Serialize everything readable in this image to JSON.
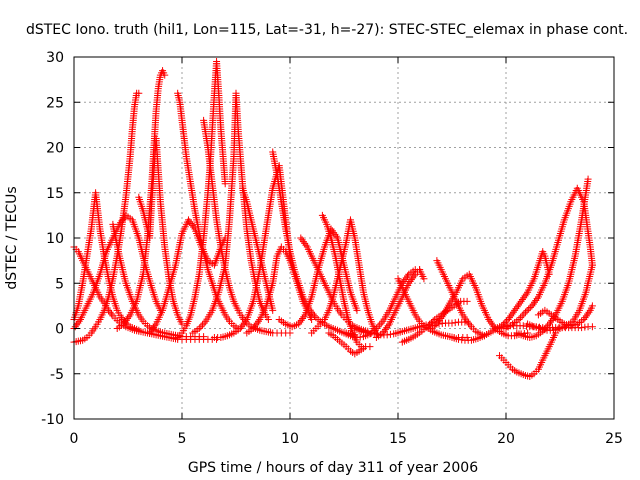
{
  "chart_data": {
    "type": "scatter",
    "title": "dSTEC Iono. truth (hil1, Lon=115, Lat=-31, h=-27): STEC-STEC_elemax in phase cont.",
    "xlabel": "GPS time / hours of day 311 of year 2006",
    "ylabel": "dSTEC  / TECUs",
    "xlim": [
      0,
      25
    ],
    "ylim": [
      -10,
      30
    ],
    "x_ticks": [
      0,
      5,
      10,
      15,
      20,
      25
    ],
    "y_ticks": [
      -10,
      -5,
      0,
      5,
      10,
      15,
      20,
      25,
      30
    ],
    "grid": true,
    "marker": "+",
    "color": "#ff0000",
    "series": [
      {
        "x": [
          0.0,
          0.2,
          0.4,
          0.6,
          0.8,
          1.0,
          1.2,
          1.4,
          1.6,
          1.8,
          2.0,
          2.2,
          2.4,
          2.6,
          2.8,
          3.0,
          3.2,
          3.4,
          3.6,
          3.8,
          4.0,
          4.2,
          4.4,
          4.6,
          4.8,
          5.0,
          5.2,
          5.4,
          5.6,
          5.8,
          6.0,
          6.2,
          6.4,
          6.6
        ],
        "y": [
          9.0,
          8.5,
          7.5,
          6.5,
          5.5,
          4.5,
          3.5,
          2.8,
          2.0,
          1.4,
          0.9,
          0.5,
          0.2,
          0.0,
          -0.2,
          -0.3,
          -0.4,
          -0.5,
          -0.6,
          -0.7,
          -0.8,
          -0.9,
          -1.0,
          -1.1,
          -1.2,
          -1.2,
          -1.2,
          -1.2,
          -1.2,
          -1.2,
          -1.2,
          -1.2,
          -1.2,
          -1.2
        ]
      },
      {
        "x": [
          0.0,
          0.2,
          0.4,
          0.6,
          0.8,
          0.9,
          1.0,
          1.1,
          1.2,
          1.4,
          1.6,
          1.8,
          2.0,
          2.2,
          2.4,
          2.6,
          2.8,
          3.0
        ],
        "y": [
          1.0,
          2.5,
          5.0,
          8.0,
          11.0,
          13.0,
          15.0,
          13.0,
          11.0,
          8.0,
          5.5,
          3.5,
          2.0,
          1.2,
          0.6,
          0.2,
          0.0,
          -0.2
        ]
      },
      {
        "x": [
          0.0,
          0.2,
          0.4,
          0.6,
          0.8,
          1.0,
          1.2,
          1.4,
          1.6,
          1.8,
          2.0,
          2.2,
          2.4,
          2.6,
          2.7,
          2.8,
          2.9,
          3.0
        ],
        "y": [
          -1.5,
          -1.4,
          -1.3,
          -1.0,
          -0.5,
          0.2,
          1.0,
          2.0,
          3.5,
          5.5,
          8.0,
          11.0,
          14.5,
          19.0,
          22.0,
          24.5,
          26.0,
          26.0
        ]
      },
      {
        "x": [
          0.0,
          0.3,
          0.6,
          0.9,
          1.2,
          1.5,
          1.8,
          2.1,
          2.4,
          2.7,
          3.0,
          3.3,
          3.6,
          3.8,
          3.9,
          4.0
        ],
        "y": [
          0.0,
          1.0,
          2.5,
          4.0,
          6.0,
          8.5,
          10.0,
          11.5,
          12.5,
          12.0,
          10.0,
          7.0,
          4.5,
          3.0,
          2.5,
          2.0
        ]
      },
      {
        "x": [
          1.8,
          2.1,
          2.4,
          2.7,
          3.0,
          3.2,
          3.4,
          3.6,
          3.8,
          4.0,
          4.2,
          4.4,
          4.6,
          4.8,
          5.0,
          5.2,
          5.4,
          5.6,
          5.8,
          6.0
        ],
        "y": [
          11.5,
          8.0,
          5.0,
          3.0,
          1.5,
          0.8,
          0.3,
          0.0,
          -0.2,
          -0.4,
          -0.5,
          -0.6,
          -0.7,
          -0.8,
          -0.9,
          -0.9,
          -0.9,
          -0.9,
          -0.9,
          -0.9
        ]
      },
      {
        "x": [
          2.0,
          2.3,
          2.6,
          2.9,
          3.2,
          3.4,
          3.6,
          3.7,
          3.8,
          3.9,
          4.0,
          4.1,
          4.2
        ],
        "y": [
          0.0,
          0.5,
          1.5,
          3.0,
          6.0,
          10.0,
          16.0,
          20.0,
          24.0,
          26.5,
          28.0,
          28.5,
          28.0
        ]
      },
      {
        "x": [
          3.0,
          3.2,
          3.4,
          3.5,
          3.6,
          3.8,
          4.0,
          4.2,
          4.4,
          4.6,
          4.8,
          5.0
        ],
        "y": [
          14.5,
          13.0,
          11.0,
          10.0,
          14.0,
          21.0,
          14.0,
          9.0,
          5.5,
          3.0,
          1.5,
          0.5
        ]
      },
      {
        "x": [
          3.5,
          3.8,
          4.1,
          4.4,
          4.7,
          5.0,
          5.3,
          5.6,
          5.9,
          6.2,
          6.5,
          6.8,
          7.0
        ],
        "y": [
          -0.5,
          0.5,
          2.0,
          4.5,
          7.0,
          10.5,
          12.0,
          11.0,
          9.0,
          7.5,
          7.0,
          9.0,
          10.0
        ]
      },
      {
        "x": [
          4.8,
          4.9,
          5.0,
          5.1,
          5.2,
          5.4,
          5.6,
          5.8,
          6.0,
          6.2,
          6.4,
          6.6,
          6.8,
          7.0,
          7.2,
          7.4,
          7.6
        ],
        "y": [
          26.0,
          25.0,
          23.0,
          21.0,
          19.0,
          16.0,
          13.0,
          10.5,
          8.5,
          6.5,
          5.0,
          3.5,
          2.5,
          1.5,
          0.8,
          0.3,
          0.0
        ]
      },
      {
        "x": [
          4.8,
          5.0,
          5.2,
          5.4,
          5.6,
          5.8,
          6.0,
          6.2,
          6.3,
          6.4,
          6.5,
          6.6,
          6.7,
          6.8,
          7.0
        ],
        "y": [
          -1.0,
          -0.5,
          0.3,
          1.5,
          3.5,
          6.0,
          10.0,
          15.0,
          18.0,
          22.0,
          26.0,
          29.5,
          26.0,
          22.0,
          16.0
        ]
      },
      {
        "x": [
          6.0,
          6.2,
          6.4,
          6.6,
          6.8,
          7.0,
          7.2,
          7.4,
          7.6,
          7.8,
          8.0,
          8.2,
          8.4,
          8.6,
          8.8,
          9.0,
          9.2,
          9.4,
          9.6,
          9.8,
          10.0
        ],
        "y": [
          23.0,
          20.0,
          16.0,
          12.0,
          9.0,
          6.5,
          4.5,
          3.0,
          2.0,
          1.2,
          0.6,
          0.2,
          0.0,
          -0.2,
          -0.3,
          -0.4,
          -0.5,
          -0.5,
          -0.5,
          -0.5,
          -0.5
        ]
      },
      {
        "x": [
          5.5,
          5.8,
          6.1,
          6.4,
          6.7,
          7.0,
          7.2,
          7.4,
          7.5,
          7.6,
          7.8,
          8.0,
          8.2,
          8.4,
          8.6,
          8.8,
          9.0
        ],
        "y": [
          -0.5,
          0.0,
          0.8,
          2.0,
          4.0,
          7.0,
          12.0,
          19.0,
          26.0,
          22.0,
          16.0,
          11.0,
          7.5,
          5.0,
          3.0,
          1.8,
          1.0
        ]
      },
      {
        "x": [
          6.5,
          6.8,
          7.1,
          7.4,
          7.7,
          8.0,
          8.3,
          8.6,
          8.9,
          9.2,
          9.5,
          9.8,
          10.0
        ],
        "y": [
          -1.0,
          -1.0,
          -0.8,
          -0.5,
          0.0,
          1.0,
          3.0,
          6.5,
          11.0,
          15.5,
          18.0,
          12.0,
          8.0
        ]
      },
      {
        "x": [
          8.0,
          8.3,
          8.6,
          8.9,
          9.2,
          9.4,
          9.6,
          9.8,
          10.0,
          10.2,
          10.4,
          10.6,
          10.8,
          11.0
        ],
        "y": [
          -0.5,
          0.0,
          1.0,
          2.5,
          5.0,
          8.0,
          9.0,
          8.5,
          7.5,
          6.0,
          4.5,
          3.0,
          2.0,
          1.0
        ]
      },
      {
        "x": [
          7.8,
          8.0,
          8.2,
          8.4,
          8.6,
          8.8,
          9.0,
          9.2
        ],
        "y": [
          15.5,
          14.0,
          12.0,
          10.0,
          8.0,
          6.0,
          4.0,
          2.0
        ]
      },
      {
        "x": [
          9.2,
          9.4,
          9.6,
          9.8,
          10.0,
          10.2,
          10.4,
          10.6,
          10.8,
          11.0,
          11.2,
          11.4,
          11.6,
          11.8,
          12.0,
          12.2,
          12.4,
          12.6,
          12.8,
          13.0
        ],
        "y": [
          19.5,
          17.0,
          14.0,
          11.0,
          8.5,
          6.5,
          5.0,
          3.5,
          2.5,
          1.8,
          1.2,
          0.8,
          0.5,
          0.2,
          0.0,
          -0.2,
          -0.4,
          -0.5,
          -0.6,
          -0.7
        ]
      },
      {
        "x": [
          9.5,
          9.8,
          10.1,
          10.4,
          10.7,
          11.0,
          11.3,
          11.6,
          11.9,
          12.2,
          12.5,
          12.8,
          13.1
        ],
        "y": [
          1.0,
          0.5,
          0.2,
          0.5,
          1.5,
          3.5,
          6.5,
          9.0,
          11.0,
          10.0,
          7.0,
          4.0,
          2.0
        ]
      },
      {
        "x": [
          10.5,
          10.8,
          11.0,
          11.2,
          11.4,
          11.6,
          11.8,
          12.0,
          12.2,
          12.4,
          12.6,
          12.8,
          13.0,
          13.2,
          13.4,
          13.6
        ],
        "y": [
          10.0,
          9.0,
          8.0,
          7.0,
          6.0,
          5.0,
          4.0,
          3.0,
          2.2,
          1.5,
          1.0,
          0.5,
          0.2,
          0.0,
          -0.2,
          -0.3
        ]
      },
      {
        "x": [
          11.0,
          11.2,
          11.4,
          11.6,
          11.8,
          12.0,
          12.2,
          12.4,
          12.6,
          12.8,
          13.0,
          13.2,
          13.4,
          13.6,
          13.8,
          14.0
        ],
        "y": [
          -0.5,
          0.0,
          0.5,
          1.0,
          2.0,
          3.5,
          5.5,
          7.5,
          9.5,
          12.0,
          10.0,
          7.0,
          4.0,
          2.0,
          0.5,
          -0.5
        ]
      },
      {
        "x": [
          11.5,
          11.7,
          11.9,
          12.1,
          12.3,
          12.5,
          12.7,
          12.9,
          13.1,
          13.3,
          13.5,
          13.7
        ],
        "y": [
          12.5,
          11.5,
          10.0,
          8.0,
          5.5,
          3.0,
          1.0,
          -0.5,
          -1.5,
          -2.0,
          -2.0,
          -2.0
        ]
      },
      {
        "x": [
          11.8,
          12.0,
          12.2,
          12.4,
          12.6,
          12.8,
          13.0,
          13.2,
          13.4
        ],
        "y": [
          -0.5,
          -0.8,
          -1.2,
          -1.6,
          -2.0,
          -2.5,
          -2.8,
          -2.5,
          -2.2
        ]
      },
      {
        "x": [
          13.0,
          13.3,
          13.6,
          13.9,
          14.2,
          14.5,
          14.8,
          15.1,
          15.4,
          15.7,
          16.0,
          16.3,
          16.6,
          16.9,
          17.2,
          17.5,
          17.8,
          18.1
        ],
        "y": [
          0.0,
          -0.3,
          -0.5,
          -0.6,
          -0.7,
          -0.7,
          -0.6,
          -0.4,
          -0.2,
          0.0,
          0.2,
          0.4,
          0.5,
          0.5,
          0.6,
          0.6,
          0.7,
          0.7
        ]
      },
      {
        "x": [
          12.5,
          12.8,
          13.1,
          13.4,
          13.7,
          14.0,
          14.3,
          14.6,
          14.9,
          15.2,
          15.5,
          15.8,
          16.0
        ],
        "y": [
          -0.5,
          -0.8,
          -1.0,
          -0.9,
          -0.6,
          0.0,
          0.8,
          2.0,
          3.5,
          5.0,
          6.0,
          6.5,
          6.5
        ]
      },
      {
        "x": [
          14.0,
          14.3,
          14.6,
          14.9,
          15.2,
          15.5,
          15.8,
          16.0,
          16.2
        ],
        "y": [
          -1.0,
          -0.5,
          0.5,
          2.0,
          3.5,
          5.0,
          6.0,
          6.5,
          5.5
        ]
      },
      {
        "x": [
          15.2,
          15.5,
          15.8,
          16.1,
          16.4,
          16.7,
          17.0,
          17.3,
          17.6,
          17.9,
          18.2
        ],
        "y": [
          -1.5,
          -1.2,
          -0.8,
          -0.3,
          0.3,
          1.0,
          1.5,
          2.0,
          2.5,
          3.0,
          3.0
        ]
      },
      {
        "x": [
          15.0,
          15.2,
          15.4,
          15.6,
          15.8,
          16.0,
          16.2,
          16.4,
          16.6,
          16.8,
          17.0,
          17.2,
          17.4,
          17.6,
          17.8,
          18.0,
          18.2
        ],
        "y": [
          5.5,
          4.5,
          3.5,
          2.5,
          1.5,
          0.8,
          0.3,
          0.0,
          -0.3,
          -0.5,
          -0.7,
          -0.8,
          -0.9,
          -1.0,
          -1.0,
          -1.0,
          -1.0
        ]
      },
      {
        "x": [
          16.5,
          16.8,
          17.1,
          17.4,
          17.7,
          18.0,
          18.3,
          18.6,
          18.9,
          19.2,
          19.5,
          19.8,
          20.1,
          20.4,
          20.7,
          21.0
        ],
        "y": [
          0.0,
          0.5,
          1.5,
          2.8,
          4.0,
          5.5,
          6.0,
          4.5,
          2.5,
          1.0,
          0.0,
          -0.5,
          -0.8,
          -0.8,
          -0.6,
          -0.5
        ]
      },
      {
        "x": [
          16.8,
          17.0,
          17.2,
          17.4,
          17.6,
          17.8,
          18.0,
          18.2,
          18.4,
          18.6,
          18.8,
          19.0
        ],
        "y": [
          7.5,
          6.5,
          5.5,
          4.5,
          3.5,
          2.5,
          1.5,
          0.8,
          0.2,
          -0.3,
          -0.6,
          -0.8
        ]
      },
      {
        "x": [
          17.5,
          17.8,
          18.1,
          18.4,
          18.7,
          19.0,
          19.3,
          19.6,
          19.9,
          20.2,
          20.5,
          20.8,
          21.1,
          21.4,
          21.7,
          22.0,
          22.3,
          22.6,
          22.9,
          23.2,
          23.5,
          23.8,
          24.0
        ],
        "y": [
          -1.0,
          -1.2,
          -1.3,
          -1.3,
          -1.1,
          -0.8,
          -0.4,
          0.0,
          0.2,
          0.3,
          0.3,
          0.3,
          0.2,
          0.2,
          0.1,
          0.1,
          0.1,
          0.1,
          0.1,
          0.1,
          0.1,
          0.2,
          0.2
        ]
      },
      {
        "x": [
          19.7,
          19.9,
          20.1,
          20.3,
          20.5,
          20.7,
          20.9,
          21.1,
          21.3,
          21.5,
          21.7,
          21.9,
          22.1,
          22.3
        ],
        "y": [
          -3.0,
          -3.5,
          -4.0,
          -4.5,
          -4.8,
          -5.0,
          -5.2,
          -5.3,
          -5.0,
          -4.5,
          -3.5,
          -2.5,
          -1.5,
          -0.5
        ]
      },
      {
        "x": [
          19.5,
          19.8,
          20.1,
          20.4,
          20.7,
          21.0,
          21.3,
          21.5,
          21.7,
          21.8,
          22.0
        ],
        "y": [
          0.0,
          0.3,
          1.0,
          2.0,
          3.0,
          4.0,
          5.5,
          7.0,
          8.5,
          8.0,
          6.0
        ]
      },
      {
        "x": [
          20.0,
          20.3,
          20.6,
          20.9,
          21.2,
          21.5,
          21.8,
          22.1,
          22.4,
          22.7,
          23.0,
          23.3,
          23.6,
          23.9,
          24.0
        ],
        "y": [
          0.0,
          0.5,
          1.0,
          1.8,
          2.5,
          3.5,
          5.0,
          7.0,
          9.5,
          12.0,
          14.0,
          15.5,
          14.0,
          9.0,
          7.0
        ]
      },
      {
        "x": [
          20.5,
          20.8,
          21.1,
          21.4,
          21.7,
          22.0,
          22.3,
          22.6,
          22.9,
          23.2,
          23.5,
          23.7,
          23.8
        ],
        "y": [
          -0.5,
          -0.8,
          -1.0,
          -0.8,
          -0.3,
          0.5,
          1.5,
          3.0,
          5.0,
          8.0,
          12.0,
          15.0,
          16.5
        ]
      },
      {
        "x": [
          21.0,
          21.3,
          21.6,
          21.9,
          22.2,
          22.5,
          22.8,
          23.1,
          23.4,
          23.7,
          24.0
        ],
        "y": [
          0.5,
          0.2,
          0.0,
          -0.2,
          -0.2,
          0.0,
          0.3,
          0.8,
          2.0,
          4.0,
          7.0
        ]
      },
      {
        "x": [
          21.5,
          21.8,
          22.1,
          22.4,
          22.7,
          23.0,
          23.3,
          23.6,
          23.9,
          24.0
        ],
        "y": [
          1.5,
          2.0,
          1.5,
          1.0,
          0.5,
          0.3,
          0.5,
          1.0,
          2.0,
          2.5
        ]
      }
    ]
  }
}
